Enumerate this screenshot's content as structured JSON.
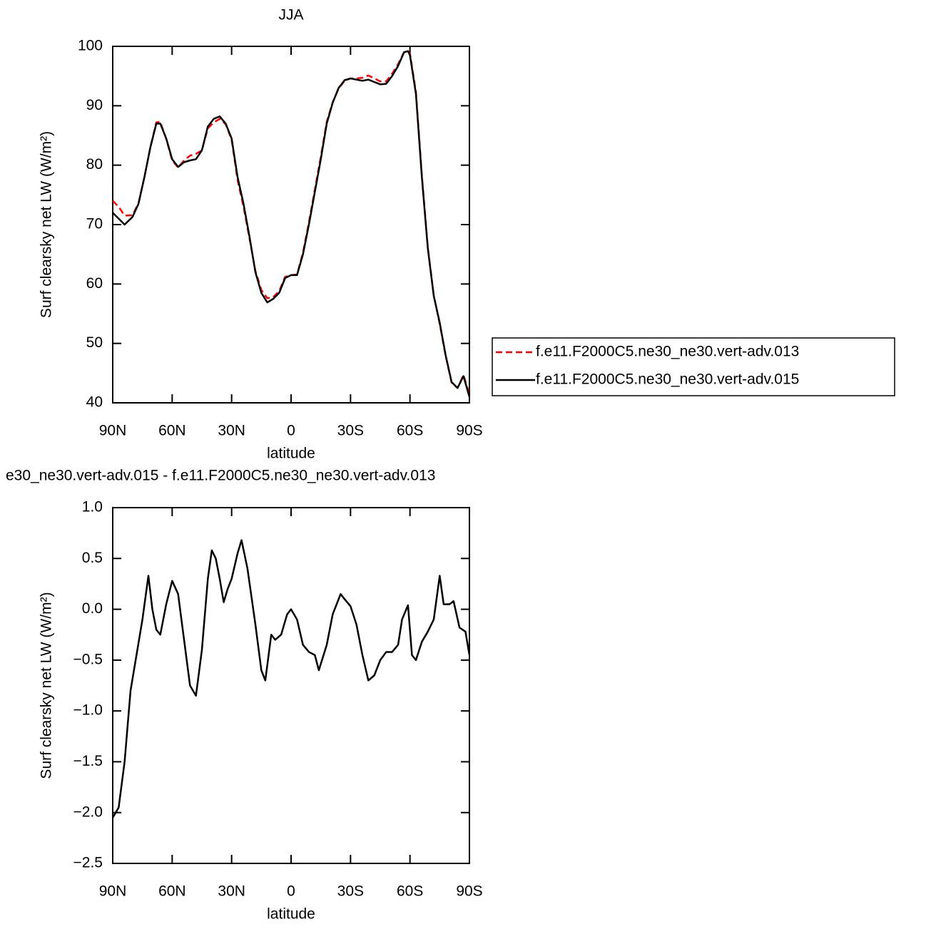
{
  "chart_data": [
    {
      "type": "line",
      "title": "JJA",
      "xlabel": "latitude",
      "ylabel": "Surf clearsky net LW (W/m²)",
      "x": [
        90,
        87,
        84,
        80,
        77,
        74,
        71,
        68,
        66,
        63,
        60,
        57,
        54,
        51,
        48,
        45,
        42,
        39,
        36,
        33,
        30,
        27,
        24,
        21,
        18,
        15,
        12,
        9,
        6,
        3,
        0,
        -3,
        -6,
        -9,
        -12,
        -15,
        -18,
        -21,
        -24,
        -27,
        -30,
        -33,
        -36,
        -39,
        -42,
        -45,
        -48,
        -51,
        -54,
        -57,
        -59,
        -60,
        -63,
        -66,
        -69,
        -72,
        -75,
        -78,
        -81,
        -84,
        -87,
        -90
      ],
      "series": [
        {
          "name": "f.e11.F2000C5.ne30_ne30.vert-adv.013",
          "color": "#ff0000",
          "linestyle": "dashed",
          "values": [
            74,
            73,
            71.5,
            71.6,
            73.6,
            78,
            83,
            87.2,
            87.3,
            84.4,
            80.8,
            79.6,
            80.8,
            81.6,
            81.9,
            82.5,
            86.2,
            87.2,
            87.8,
            86.9,
            84.3,
            77.5,
            73,
            67.7,
            62.2,
            59,
            57.6,
            57.8,
            58.8,
            61.2,
            61.5,
            61.6,
            65.3,
            70.4,
            75.9,
            81.4,
            87.3,
            90.6,
            92.9,
            94.2,
            94.6,
            94.6,
            94.7,
            95.1,
            94.6,
            94.1,
            94.1,
            95.4,
            97,
            99,
            99.2,
            98.8,
            92.4,
            78.3,
            66.2,
            58.1,
            53.3,
            47.9,
            43.4,
            42.5,
            44.7,
            41.4
          ]
        },
        {
          "name": "f.e11.F2000C5.ne30_ne30.vert-adv.015",
          "color": "#000000",
          "linestyle": "solid",
          "values": [
            72,
            71,
            70,
            71.3,
            73.5,
            78,
            83,
            87,
            87,
            84.5,
            81,
            79.7,
            80.5,
            80.8,
            81,
            82.5,
            86.5,
            87.8,
            88.2,
            87,
            84.5,
            78,
            73.5,
            68,
            62,
            58.5,
            56.9,
            57.5,
            58.5,
            61,
            61.5,
            61.5,
            65,
            70,
            75.5,
            81,
            87,
            90.5,
            93,
            94.3,
            94.6,
            94.4,
            94.2,
            94.4,
            94,
            93.6,
            93.7,
            95,
            96.7,
            99,
            99.2,
            98.5,
            92,
            78,
            66,
            58,
            53.5,
            48,
            43.5,
            42.5,
            44.5,
            41
          ]
        }
      ],
      "xlim": [
        90,
        -90
      ],
      "xticks": [
        {
          "value": 90,
          "label": "90N"
        },
        {
          "value": 60,
          "label": "60N"
        },
        {
          "value": 30,
          "label": "30N"
        },
        0,
        {
          "value": -30,
          "label": "30S"
        },
        {
          "value": -60,
          "label": "60S"
        },
        {
          "value": -90,
          "label": "90S"
        }
      ],
      "ylim": [
        40,
        100
      ],
      "yticks": [
        40,
        50,
        60,
        70,
        80,
        90,
        100
      ],
      "legend": "right"
    },
    {
      "type": "line",
      "title": "e30_ne30.vert-adv.015 - f.e11.F2000C5.ne30_ne30.vert-adv.013",
      "xlabel": "latitude",
      "ylabel": "Surf clearsky net LW (W/m²)",
      "x": [
        90,
        87,
        84,
        81,
        78,
        75,
        72,
        70,
        68,
        66,
        63,
        60,
        57,
        54,
        51,
        48,
        45,
        42,
        40,
        38,
        36,
        34,
        32,
        30,
        27,
        25,
        22,
        18,
        15,
        13,
        10,
        8,
        5,
        2,
        0,
        -3,
        -6,
        -9,
        -12,
        -14,
        -18,
        -21,
        -25,
        -27,
        -30,
        -33,
        -36,
        -39,
        -42,
        -45,
        -48,
        -51,
        -54,
        -56,
        -59,
        -61,
        -63,
        -66,
        -69,
        -72,
        -75,
        -77,
        -80,
        -82,
        -85,
        -88,
        -90
      ],
      "values": [
        -2.05,
        -1.95,
        -1.5,
        -0.8,
        -0.45,
        -0.1,
        0.33,
        0,
        -0.2,
        -0.25,
        0.05,
        0.28,
        0.15,
        -0.3,
        -0.75,
        -0.85,
        -0.4,
        0.3,
        0.58,
        0.5,
        0.3,
        0.07,
        0.2,
        0.3,
        0.55,
        0.68,
        0.4,
        -0.15,
        -0.6,
        -0.7,
        -0.25,
        -0.3,
        -0.25,
        -0.05,
        0,
        -0.1,
        -0.35,
        -0.42,
        -0.45,
        -0.6,
        -0.35,
        -0.05,
        0.15,
        0.1,
        0.03,
        -0.15,
        -0.45,
        -0.7,
        -0.65,
        -0.5,
        -0.42,
        -0.42,
        -0.35,
        -0.1,
        0.04,
        -0.45,
        -0.5,
        -0.32,
        -0.22,
        -0.1,
        0.33,
        0.05,
        0.05,
        0.08,
        -0.18,
        -0.22,
        -0.45
      ],
      "color": "#000000",
      "xlim": [
        90,
        -90
      ],
      "xticks": [
        {
          "value": 90,
          "label": "90N"
        },
        {
          "value": 60,
          "label": "60N"
        },
        {
          "value": 30,
          "label": "30N"
        },
        0,
        {
          "value": -30,
          "label": "30S"
        },
        {
          "value": -60,
          "label": "60S"
        },
        {
          "value": -90,
          "label": "90S"
        }
      ],
      "ylim": [
        -2.5,
        1
      ],
      "yticks": [
        {
          "value": -2.5,
          "label": "−2.5"
        },
        {
          "value": -2,
          "label": "−2.0"
        },
        {
          "value": -1.5,
          "label": "−1.5"
        },
        {
          "value": -1,
          "label": "−1.0"
        },
        {
          "value": -0.5,
          "label": "−0.5"
        },
        {
          "value": 0,
          "label": "0.0"
        },
        {
          "value": 0.5,
          "label": "0.5"
        },
        {
          "value": 1,
          "label": "1.0"
        }
      ]
    }
  ]
}
